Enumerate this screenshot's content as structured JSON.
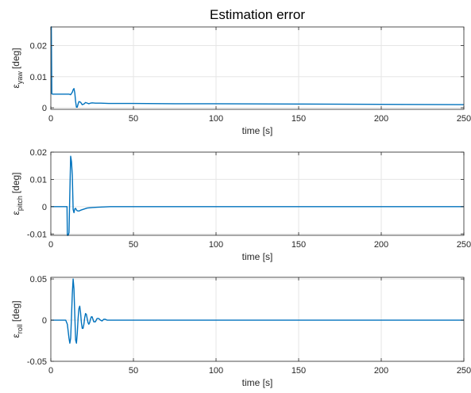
{
  "figure": {
    "title": "Estimation error",
    "line_color": "#0072BD",
    "grid_color": "#e6e6e6"
  },
  "chart_data": [
    {
      "type": "line",
      "title": "Estimation error",
      "ylabel": {
        "base": "ε",
        "sub": "yaw",
        "unit": "[deg]"
      },
      "xlabel": "time [s]",
      "xlim": [
        0,
        250
      ],
      "ylim": [
        -0.0005,
        0.026
      ],
      "xticks": [
        0,
        50,
        100,
        150,
        200,
        250
      ],
      "xtick_labels": [
        "0",
        "50",
        "100",
        "150",
        "200",
        "250"
      ],
      "yticks": [
        0,
        0.01,
        0.02
      ],
      "ytick_labels": [
        "0",
        "0.01",
        "0.02"
      ],
      "grid": true,
      "series": [
        {
          "x": [
            0,
            0.3,
            0.6,
            1,
            5,
            10,
            11,
            12,
            13,
            13.5,
            14,
            14.5,
            15,
            15.5,
            16,
            16.5,
            17,
            18,
            19,
            20,
            21,
            22,
            23,
            24,
            25,
            27,
            30,
            35,
            40,
            50,
            75,
            100,
            150,
            200,
            250
          ],
          "y": [
            0.026,
            0.026,
            0.0045,
            0.0044,
            0.0044,
            0.0044,
            0.0044,
            0.0042,
            0.005,
            0.0058,
            0.0062,
            0.0048,
            0.002,
            0.0002,
            0.0002,
            0.0012,
            0.002,
            0.0018,
            0.001,
            0.0012,
            0.0017,
            0.0015,
            0.0013,
            0.0015,
            0.0016,
            0.0015,
            0.0015,
            0.0014,
            0.0014,
            0.0014,
            0.0013,
            0.0013,
            0.0012,
            0.0011,
            0.001
          ]
        }
      ]
    },
    {
      "type": "line",
      "ylabel": {
        "base": "ε",
        "sub": "pitch",
        "unit": "[deg]"
      },
      "xlabel": "time [s]",
      "xlim": [
        0,
        250
      ],
      "ylim": [
        -0.0105,
        0.02
      ],
      "xticks": [
        0,
        50,
        100,
        150,
        200,
        250
      ],
      "xtick_labels": [
        "0",
        "50",
        "100",
        "150",
        "200",
        "250"
      ],
      "yticks": [
        -0.01,
        0,
        0.01,
        0.02
      ],
      "ytick_labels": [
        "-0.01",
        "0",
        "0.01",
        "0.02"
      ],
      "grid": true,
      "series": [
        {
          "x": [
            0,
            9.8,
            10,
            10.5,
            11,
            11.5,
            12,
            12.5,
            13,
            13.5,
            14,
            14.5,
            15,
            15.5,
            16,
            17,
            18,
            20,
            22,
            25,
            28,
            32,
            36,
            40,
            50,
            100,
            150,
            200,
            250
          ],
          "y": [
            0,
            0,
            -0.0105,
            -0.0105,
            -0.0095,
            0.005,
            0.0185,
            0.0165,
            0.0115,
            -0.001,
            -0.0022,
            -0.0008,
            -0.0006,
            -0.0012,
            -0.0015,
            -0.0016,
            -0.0013,
            -0.0009,
            -0.0005,
            -0.0003,
            -0.0002,
            -0.0001,
            0,
            0,
            0,
            0,
            0,
            0,
            0
          ]
        }
      ]
    },
    {
      "type": "line",
      "ylabel": {
        "base": "ε",
        "sub": "roll",
        "unit": "[deg]"
      },
      "xlabel": "time [s]",
      "xlim": [
        0,
        250
      ],
      "ylim": [
        -0.05,
        0.052
      ],
      "xticks": [
        0,
        50,
        100,
        150,
        200,
        250
      ],
      "xtick_labels": [
        "0",
        "50",
        "100",
        "150",
        "200",
        "250"
      ],
      "yticks": [
        -0.05,
        0,
        0.05
      ],
      "ytick_labels": [
        "-0.05",
        "0",
        "0.05"
      ],
      "grid": true,
      "series": [
        {
          "x": [
            0,
            9,
            10,
            11,
            11.5,
            12,
            12.5,
            13,
            13.5,
            14,
            14.5,
            15,
            15.5,
            16,
            16.5,
            17,
            17.5,
            18,
            18.5,
            19,
            19.5,
            20,
            20.5,
            21,
            21.5,
            22,
            22.5,
            23,
            23.5,
            24,
            24.5,
            25,
            25.5,
            26,
            27,
            28,
            29,
            30,
            31,
            32,
            33,
            34,
            35,
            37,
            40,
            50,
            100,
            150,
            200,
            250
          ],
          "y": [
            0,
            0,
            -0.005,
            -0.022,
            -0.028,
            -0.022,
            0.004,
            0.032,
            0.05,
            0.038,
            0.006,
            -0.024,
            -0.028,
            -0.016,
            0.002,
            0.014,
            0.017,
            0.009,
            -0.003,
            -0.01,
            -0.01,
            -0.005,
            0.003,
            0.008,
            0.007,
            0.002,
            -0.003,
            -0.005,
            -0.003,
            0.001,
            0.004,
            0.004,
            0.001,
            -0.002,
            -0.002,
            0.002,
            0.002,
            0,
            -0.001,
            0.001,
            0.001,
            0,
            0,
            0,
            0,
            0,
            0,
            0,
            0,
            0
          ]
        }
      ]
    }
  ]
}
